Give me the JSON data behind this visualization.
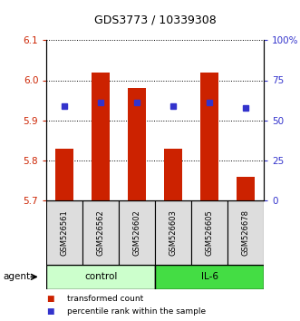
{
  "title": "GDS3773 / 10339308",
  "samples": [
    "GSM526561",
    "GSM526562",
    "GSM526602",
    "GSM526603",
    "GSM526605",
    "GSM526678"
  ],
  "groups": [
    "control",
    "control",
    "control",
    "IL-6",
    "IL-6",
    "IL-6"
  ],
  "bar_bottoms": [
    5.7,
    5.7,
    5.7,
    5.7,
    5.7,
    5.7
  ],
  "bar_tops": [
    5.83,
    6.02,
    5.98,
    5.83,
    6.02,
    5.76
  ],
  "percentile_values": [
    5.935,
    5.945,
    5.945,
    5.935,
    5.945,
    5.932
  ],
  "ylim_left": [
    5.7,
    6.1
  ],
  "ylim_right": [
    0,
    100
  ],
  "yticks_left": [
    5.7,
    5.8,
    5.9,
    6.0,
    6.1
  ],
  "yticks_right": [
    0,
    25,
    50,
    75,
    100
  ],
  "ytick_labels_right": [
    "0",
    "25",
    "50",
    "75",
    "100%"
  ],
  "bar_color": "#cc2200",
  "dot_color": "#3333cc",
  "control_color": "#ccffcc",
  "il6_color": "#44dd44",
  "sample_bg_color": "#dddddd",
  "left_tick_color": "#cc2200",
  "right_tick_color": "#3333cc",
  "bar_width": 0.5,
  "legend_bar_label": "transformed count",
  "legend_dot_label": "percentile rank within the sample",
  "agent_label": "agent"
}
